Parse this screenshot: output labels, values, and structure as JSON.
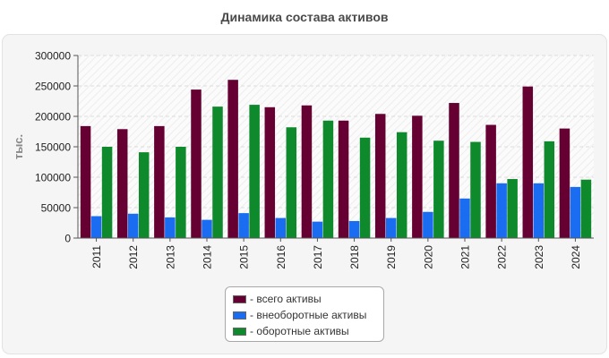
{
  "chart_data": {
    "type": "bar",
    "title": "Динамика состава активов",
    "xlabel": "",
    "ylabel": "тыс.",
    "ylim": [
      0,
      300000
    ],
    "yticks": [
      "0",
      "50000",
      "100000",
      "150000",
      "200000",
      "250000",
      "300000"
    ],
    "categories": [
      "2011",
      "2012",
      "2013",
      "2014",
      "2015",
      "2016",
      "2017",
      "2018",
      "2019",
      "2020",
      "2021",
      "2022",
      "2023",
      "2024"
    ],
    "series": [
      {
        "name": "- всего активы",
        "color": "#660033",
        "values": [
          184000,
          179000,
          184000,
          244000,
          260000,
          215000,
          218000,
          193000,
          204000,
          201000,
          222000,
          186000,
          249000,
          180000
        ]
      },
      {
        "name": "- внеоборотные активы",
        "color": "#1a6cf0",
        "values": [
          36000,
          40000,
          34000,
          30000,
          41000,
          33000,
          27000,
          28000,
          33000,
          43000,
          65000,
          90000,
          90000,
          84000
        ]
      },
      {
        "name": "- оборотные активы",
        "color": "#0e8a2d",
        "values": [
          150000,
          141000,
          150000,
          216000,
          219000,
          182000,
          193000,
          165000,
          174000,
          160000,
          158000,
          97000,
          159000,
          96000
        ]
      }
    ],
    "legend_position": "bottom-center",
    "grid": true
  }
}
